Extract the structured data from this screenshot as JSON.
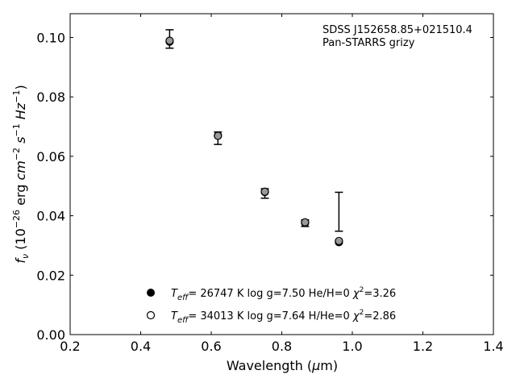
{
  "chart_data": {
    "type": "scatter",
    "xlabel_main": "Wavelength (",
    "xlabel_mu": "μ",
    "xlabel_unit": "m)",
    "ylabel_f": "f",
    "ylabel_nu": "ν",
    "ylabel_open": " (10",
    "ylabel_exp1": "−26",
    "ylabel_mid1": " erg ",
    "ylabel_cm": "cm",
    "ylabel_exp2": "−2",
    "ylabel_sp": " ",
    "ylabel_s": "s",
    "ylabel_exp3": "−1",
    "ylabel_hz": "Hz",
    "ylabel_exp4": "−1",
    "ylabel_close": ")",
    "xlim": [
      0.2,
      1.4
    ],
    "ylim": [
      0.0,
      0.108
    ],
    "xticks": [
      0.2,
      0.4,
      0.6,
      0.8,
      1.0,
      1.2,
      1.4
    ],
    "xtick_labels": [
      "0.2",
      "0.4",
      "0.6",
      "0.8",
      "1.0",
      "1.2",
      "1.4"
    ],
    "yticks": [
      0.0,
      0.02,
      0.04,
      0.06,
      0.08,
      0.1
    ],
    "ytick_labels": [
      "0.00",
      "0.02",
      "0.04",
      "0.06",
      "0.08",
      "0.10"
    ],
    "grid": false,
    "annotation": [
      "SDSS J152658.85+021510.4",
      "Pan-STARRS grizy"
    ],
    "observed": {
      "x": [
        0.482,
        0.619,
        0.752,
        0.866,
        0.962
      ],
      "y": [
        0.0996,
        0.0662,
        0.0476,
        0.0376,
        0.0415
      ],
      "yerr_low": [
        0.0032,
        0.0022,
        0.0017,
        0.0012,
        0.0067
      ],
      "yerr_high": [
        0.003,
        0.002,
        0.0015,
        0.001,
        0.0064
      ]
    },
    "series": [
      {
        "marker": "filled",
        "legend": {
          "t": "T",
          "eff": "eff",
          "rest1": "= 26747 K  log g=7.50  He/H=0  ",
          "chi": "χ",
          "sup": "2",
          "rest2": "=3.26"
        },
        "x": [
          0.482,
          0.619,
          0.752,
          0.866,
          0.962
        ],
        "y": [
          0.0986,
          0.067,
          0.048,
          0.0376,
          0.0311
        ]
      },
      {
        "marker": "open",
        "legend": {
          "t": "T",
          "eff": "eff",
          "rest1": "= 34013 K  log g=7.64  H/He=0  ",
          "chi": "χ",
          "sup": "2",
          "rest2": "=2.86"
        },
        "x": [
          0.482,
          0.619,
          0.752,
          0.866,
          0.962
        ],
        "y": [
          0.0989,
          0.0669,
          0.0481,
          0.0378,
          0.0315
        ]
      }
    ]
  }
}
